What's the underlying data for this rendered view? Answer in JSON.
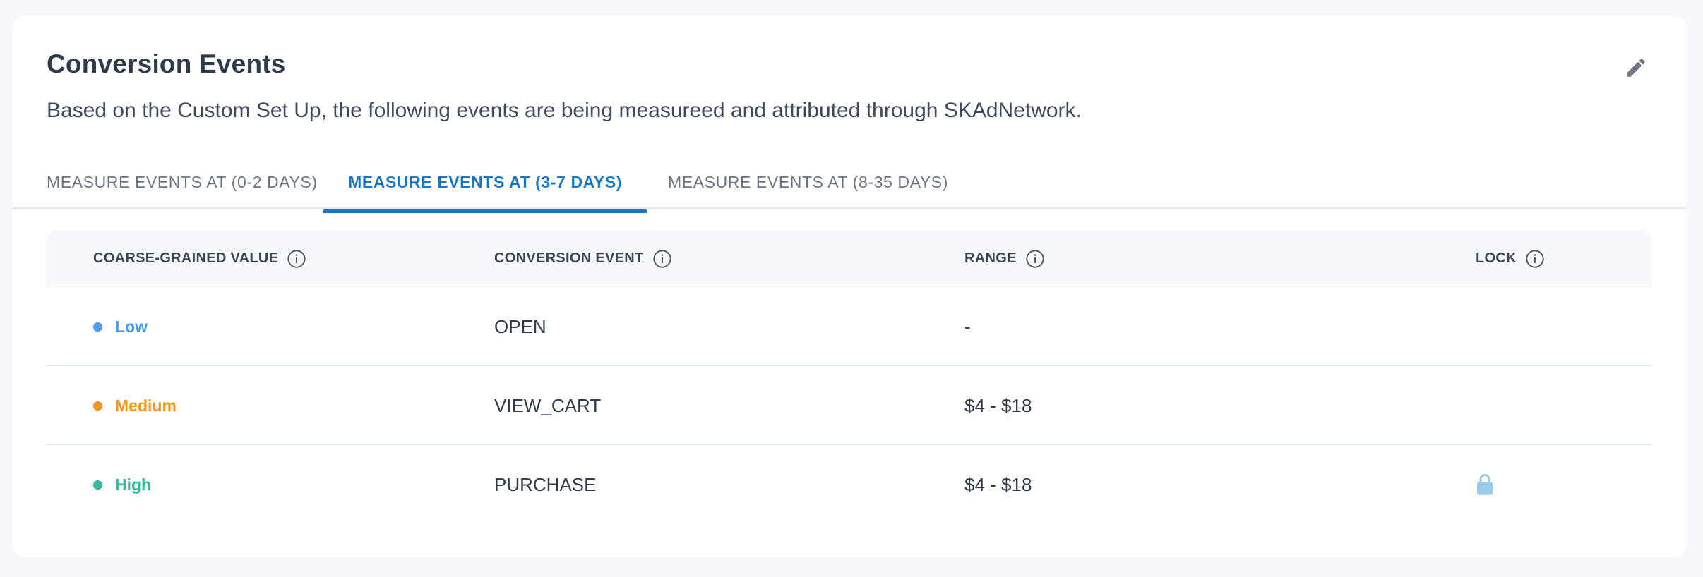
{
  "header": {
    "title": "Conversion Events",
    "subtitle": "Based on the Custom Set Up, the following events are being measureed and attributed through SKAdNetwork.",
    "edit_icon": "pencil-icon"
  },
  "tabs": [
    {
      "label": "MEASURE EVENTS AT (0-2 DAYS)",
      "active": false
    },
    {
      "label": "MEASURE EVENTS AT (3-7 DAYS)",
      "active": true
    },
    {
      "label": "MEASURE EVENTS AT (8-35 DAYS)",
      "active": false
    }
  ],
  "table": {
    "columns": [
      {
        "label": "COARSE-GRAINED VALUE",
        "icon": "info-icon"
      },
      {
        "label": "CONVERSION EVENT",
        "icon": "info-icon"
      },
      {
        "label": "RANGE",
        "icon": "info-icon"
      },
      {
        "label": "LOCK",
        "icon": "info-icon"
      }
    ],
    "rows": [
      {
        "value": "Low",
        "value_color": "#4d9cf0",
        "event": "OPEN",
        "range": "-",
        "locked": false
      },
      {
        "value": "Medium",
        "value_color": "#f2961c",
        "event": "VIEW_CART",
        "range": "$4 - $18",
        "locked": false
      },
      {
        "value": "High",
        "value_color": "#33b99b",
        "event": "PURCHASE",
        "range": "$4 - $18",
        "locked": true
      }
    ]
  },
  "colors": {
    "accent": "#1677c8",
    "lock": "#9ccbea"
  }
}
